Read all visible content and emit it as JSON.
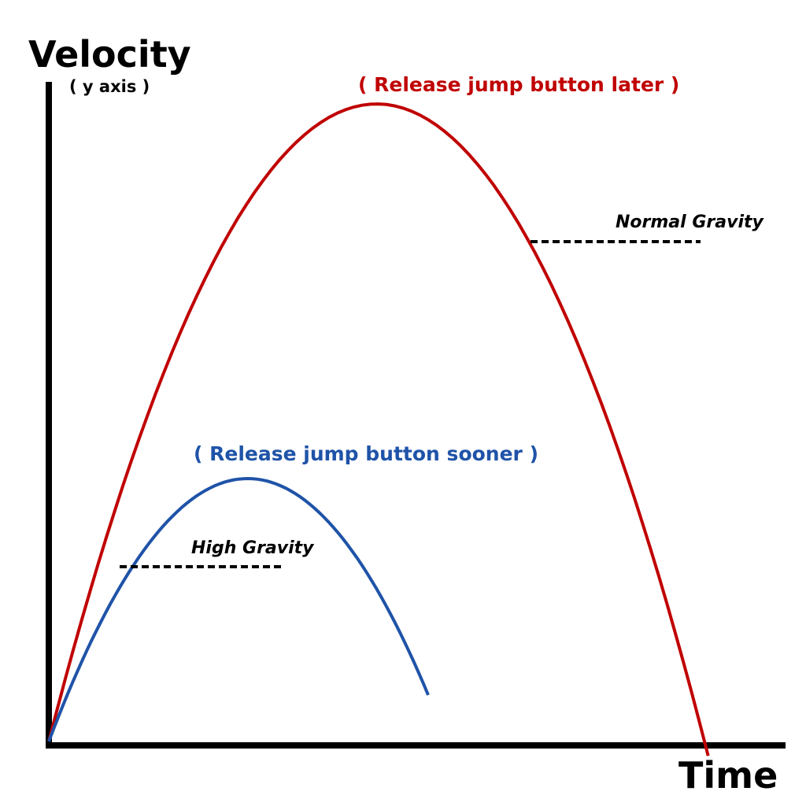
{
  "y_axis": {
    "title": "Velocity",
    "subtitle": "( y axis )"
  },
  "x_axis": {
    "title": "Time"
  },
  "curves": [
    {
      "id": "later",
      "label": "( Release jump button later )",
      "color": "#c00000",
      "peak_velocity": 0.97,
      "peak_time": 0.445,
      "end_time": 0.895
    },
    {
      "id": "sooner",
      "label": "( Release jump button sooner )",
      "color": "#1f53a8",
      "peak_velocity": 0.4,
      "peak_time": 0.27,
      "end_time": 0.515
    }
  ],
  "gravity_labels": [
    {
      "id": "normal",
      "text": "Normal Gravity"
    },
    {
      "id": "high",
      "text": "High Gravity"
    }
  ],
  "colors": {
    "axis": "#000000",
    "dashes": "#000000"
  }
}
